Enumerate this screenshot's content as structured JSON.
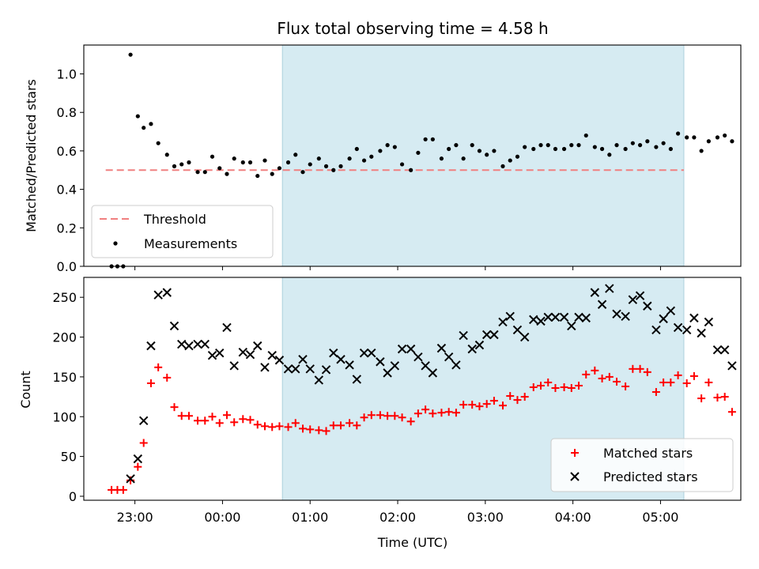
{
  "chart_data": [
    {
      "type": "scatter",
      "title": "Flux total observing time = 4.58 h",
      "ylabel": "Matched/Predicted stars",
      "xlim": [
        "22:25",
        "05:55"
      ],
      "ylim": [
        0,
        1.15
      ],
      "yticks": [
        "0.0",
        "0.2",
        "0.4",
        "0.6",
        "0.8",
        "1.0"
      ],
      "grid": false,
      "legend": "lower-left",
      "shaded_span": [
        "00:41",
        "05:16"
      ],
      "threshold": {
        "name": "Threshold",
        "value": 0.5,
        "x_range": [
          "22:40",
          "05:16"
        ],
        "color": "#f08080"
      },
      "series": [
        {
          "name": "Measurements",
          "color": "#000000",
          "points": [
            [
              "22:44",
              0.0
            ],
            [
              "22:48",
              0.0
            ],
            [
              "22:52",
              0.0
            ],
            [
              "22:57",
              1.1
            ],
            [
              "23:02",
              0.78
            ],
            [
              "23:06",
              0.72
            ],
            [
              "23:11",
              0.74
            ],
            [
              "23:16",
              0.64
            ],
            [
              "23:22",
              0.58
            ],
            [
              "23:27",
              0.52
            ],
            [
              "23:32",
              0.53
            ],
            [
              "23:37",
              0.54
            ],
            [
              "23:43",
              0.49
            ],
            [
              "23:48",
              0.49
            ],
            [
              "23:53",
              0.57
            ],
            [
              "23:58",
              0.51
            ],
            [
              "00:03",
              0.48
            ],
            [
              "00:08",
              0.56
            ],
            [
              "00:14",
              0.54
            ],
            [
              "00:19",
              0.54
            ],
            [
              "00:24",
              0.47
            ],
            [
              "00:29",
              0.55
            ],
            [
              "00:34",
              0.48
            ],
            [
              "00:39",
              0.51
            ],
            [
              "00:45",
              0.54
            ],
            [
              "00:50",
              0.58
            ],
            [
              "00:55",
              0.49
            ],
            [
              "01:00",
              0.53
            ],
            [
              "01:06",
              0.56
            ],
            [
              "01:11",
              0.52
            ],
            [
              "01:16",
              0.5
            ],
            [
              "01:21",
              0.52
            ],
            [
              "01:27",
              0.56
            ],
            [
              "01:32",
              0.61
            ],
            [
              "01:37",
              0.55
            ],
            [
              "01:42",
              0.57
            ],
            [
              "01:48",
              0.6
            ],
            [
              "01:53",
              0.63
            ],
            [
              "01:58",
              0.62
            ],
            [
              "02:03",
              0.53
            ],
            [
              "02:09",
              0.5
            ],
            [
              "02:14",
              0.59
            ],
            [
              "02:19",
              0.66
            ],
            [
              "02:24",
              0.66
            ],
            [
              "02:30",
              0.56
            ],
            [
              "02:35",
              0.61
            ],
            [
              "02:40",
              0.63
            ],
            [
              "02:45",
              0.56
            ],
            [
              "02:51",
              0.63
            ],
            [
              "02:56",
              0.6
            ],
            [
              "03:01",
              0.58
            ],
            [
              "03:06",
              0.6
            ],
            [
              "03:12",
              0.52
            ],
            [
              "03:17",
              0.55
            ],
            [
              "03:22",
              0.57
            ],
            [
              "03:27",
              0.62
            ],
            [
              "03:33",
              0.61
            ],
            [
              "03:38",
              0.63
            ],
            [
              "03:43",
              0.63
            ],
            [
              "03:48",
              0.61
            ],
            [
              "03:54",
              0.61
            ],
            [
              "03:59",
              0.63
            ],
            [
              "04:04",
              0.63
            ],
            [
              "04:09",
              0.68
            ],
            [
              "04:15",
              0.62
            ],
            [
              "04:20",
              0.61
            ],
            [
              "04:25",
              0.58
            ],
            [
              "04:30",
              0.63
            ],
            [
              "04:36",
              0.61
            ],
            [
              "04:41",
              0.64
            ],
            [
              "04:46",
              0.63
            ],
            [
              "04:51",
              0.65
            ],
            [
              "04:57",
              0.62
            ],
            [
              "05:02",
              0.64
            ],
            [
              "05:07",
              0.61
            ],
            [
              "05:12",
              0.69
            ],
            [
              "05:18",
              0.67
            ],
            [
              "05:23",
              0.67
            ],
            [
              "05:28",
              0.6
            ],
            [
              "05:33",
              0.65
            ],
            [
              "05:39",
              0.67
            ],
            [
              "05:44",
              0.68
            ],
            [
              "05:49",
              0.65
            ]
          ]
        }
      ]
    },
    {
      "type": "scatter",
      "xlabel": "Time (UTC)",
      "ylabel": "Count",
      "xlim": [
        "22:25",
        "05:55"
      ],
      "ylim": [
        -5,
        275
      ],
      "yticks": [
        "0",
        "50",
        "100",
        "150",
        "200",
        "250"
      ],
      "xticks": [
        "23:00",
        "00:00",
        "01:00",
        "02:00",
        "03:00",
        "04:00",
        "05:00"
      ],
      "grid": false,
      "legend": "lower-right",
      "shaded_span": [
        "00:41",
        "05:16"
      ],
      "series": [
        {
          "name": "Matched stars",
          "marker": "+",
          "color": "#ff0000",
          "points": [
            [
              "22:44",
              8
            ],
            [
              "22:48",
              8
            ],
            [
              "22:52",
              8
            ],
            [
              "22:57",
              20
            ],
            [
              "23:02",
              37
            ],
            [
              "23:06",
              67
            ],
            [
              "23:11",
              142
            ],
            [
              "23:16",
              162
            ],
            [
              "23:22",
              149
            ],
            [
              "23:27",
              112
            ],
            [
              "23:32",
              101
            ],
            [
              "23:37",
              101
            ],
            [
              "23:43",
              95
            ],
            [
              "23:48",
              95
            ],
            [
              "23:53",
              100
            ],
            [
              "23:58",
              92
            ],
            [
              "00:03",
              102
            ],
            [
              "00:08",
              93
            ],
            [
              "00:14",
              97
            ],
            [
              "00:19",
              96
            ],
            [
              "00:24",
              90
            ],
            [
              "00:29",
              88
            ],
            [
              "00:34",
              87
            ],
            [
              "00:39",
              88
            ],
            [
              "00:45",
              87
            ],
            [
              "00:50",
              92
            ],
            [
              "00:55",
              85
            ],
            [
              "01:00",
              84
            ],
            [
              "01:06",
              83
            ],
            [
              "01:11",
              82
            ],
            [
              "01:16",
              89
            ],
            [
              "01:21",
              89
            ],
            [
              "01:27",
              92
            ],
            [
              "01:32",
              89
            ],
            [
              "01:37",
              99
            ],
            [
              "01:42",
              102
            ],
            [
              "01:48",
              102
            ],
            [
              "01:53",
              101
            ],
            [
              "01:58",
              101
            ],
            [
              "02:03",
              99
            ],
            [
              "02:09",
              94
            ],
            [
              "02:14",
              104
            ],
            [
              "02:19",
              109
            ],
            [
              "02:24",
              104
            ],
            [
              "02:30",
              105
            ],
            [
              "02:35",
              106
            ],
            [
              "02:40",
              105
            ],
            [
              "02:45",
              115
            ],
            [
              "02:51",
              115
            ],
            [
              "02:56",
              113
            ],
            [
              "03:01",
              116
            ],
            [
              "03:06",
              120
            ],
            [
              "03:12",
              114
            ],
            [
              "03:17",
              126
            ],
            [
              "03:22",
              121
            ],
            [
              "03:27",
              125
            ],
            [
              "03:33",
              137
            ],
            [
              "03:38",
              139
            ],
            [
              "03:43",
              143
            ],
            [
              "03:48",
              136
            ],
            [
              "03:54",
              137
            ],
            [
              "03:59",
              136
            ],
            [
              "04:04",
              139
            ],
            [
              "04:09",
              153
            ],
            [
              "04:15",
              158
            ],
            [
              "04:20",
              148
            ],
            [
              "04:25",
              150
            ],
            [
              "04:30",
              144
            ],
            [
              "04:36",
              138
            ],
            [
              "04:41",
              160
            ],
            [
              "04:46",
              160
            ],
            [
              "04:51",
              156
            ],
            [
              "04:57",
              131
            ],
            [
              "05:02",
              143
            ],
            [
              "05:07",
              143
            ],
            [
              "05:12",
              152
            ],
            [
              "05:18",
              142
            ],
            [
              "05:23",
              151
            ],
            [
              "05:28",
              123
            ],
            [
              "05:33",
              143
            ],
            [
              "05:39",
              124
            ],
            [
              "05:44",
              125
            ],
            [
              "05:49",
              106
            ]
          ]
        },
        {
          "name": "Predicted stars",
          "marker": "x",
          "color": "#000000",
          "points": [
            [
              "22:57",
              22
            ],
            [
              "23:02",
              47
            ],
            [
              "23:06",
              95
            ],
            [
              "23:11",
              189
            ],
            [
              "23:16",
              253
            ],
            [
              "23:22",
              256
            ],
            [
              "23:27",
              214
            ],
            [
              "23:32",
              191
            ],
            [
              "23:37",
              189
            ],
            [
              "23:43",
              191
            ],
            [
              "23:48",
              191
            ],
            [
              "23:53",
              177
            ],
            [
              "23:58",
              180
            ],
            [
              "00:03",
              212
            ],
            [
              "00:08",
              164
            ],
            [
              "00:14",
              181
            ],
            [
              "00:19",
              178
            ],
            [
              "00:24",
              189
            ],
            [
              "00:29",
              162
            ],
            [
              "00:34",
              177
            ],
            [
              "00:39",
              171
            ],
            [
              "00:45",
              160
            ],
            [
              "00:50",
              160
            ],
            [
              "00:55",
              172
            ],
            [
              "01:00",
              160
            ],
            [
              "01:06",
              146
            ],
            [
              "01:11",
              159
            ],
            [
              "01:16",
              180
            ],
            [
              "01:21",
              172
            ],
            [
              "01:27",
              165
            ],
            [
              "01:32",
              147
            ],
            [
              "01:37",
              180
            ],
            [
              "01:42",
              180
            ],
            [
              "01:48",
              169
            ],
            [
              "01:53",
              155
            ],
            [
              "01:58",
              164
            ],
            [
              "02:03",
              185
            ],
            [
              "02:09",
              185
            ],
            [
              "02:14",
              175
            ],
            [
              "02:19",
              164
            ],
            [
              "02:24",
              155
            ],
            [
              "02:30",
              186
            ],
            [
              "02:35",
              175
            ],
            [
              "02:40",
              165
            ],
            [
              "02:45",
              202
            ],
            [
              "02:51",
              185
            ],
            [
              "02:56",
              190
            ],
            [
              "03:01",
              203
            ],
            [
              "03:06",
              203
            ],
            [
              "03:12",
              219
            ],
            [
              "03:17",
              226
            ],
            [
              "03:22",
              209
            ],
            [
              "03:27",
              200
            ],
            [
              "03:33",
              222
            ],
            [
              "03:38",
              220
            ],
            [
              "03:43",
              225
            ],
            [
              "03:48",
              225
            ],
            [
              "03:54",
              225
            ],
            [
              "03:59",
              214
            ],
            [
              "04:04",
              225
            ],
            [
              "04:09",
              224
            ],
            [
              "04:15",
              256
            ],
            [
              "04:20",
              241
            ],
            [
              "04:25",
              261
            ],
            [
              "04:30",
              229
            ],
            [
              "04:36",
              226
            ],
            [
              "04:41",
              247
            ],
            [
              "04:46",
              252
            ],
            [
              "04:51",
              239
            ],
            [
              "04:57",
              209
            ],
            [
              "05:02",
              223
            ],
            [
              "05:07",
              233
            ],
            [
              "05:12",
              212
            ],
            [
              "05:18",
              209
            ],
            [
              "05:23",
              224
            ],
            [
              "05:28",
              205
            ],
            [
              "05:33",
              219
            ],
            [
              "05:39",
              184
            ],
            [
              "05:44",
              184
            ],
            [
              "05:49",
              164
            ]
          ]
        }
      ]
    }
  ]
}
